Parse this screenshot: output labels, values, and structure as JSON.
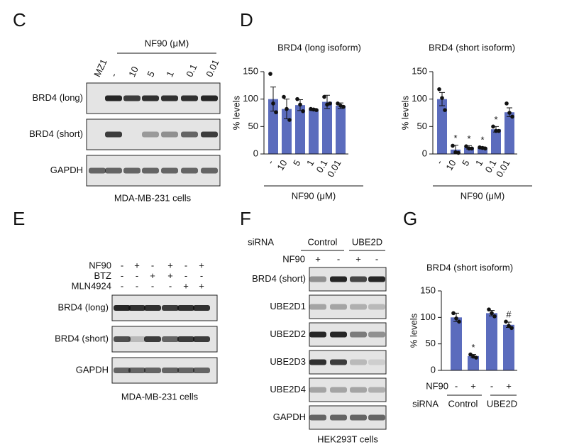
{
  "panels": {
    "C": {
      "label": "C",
      "header": "NF90 (μM)",
      "lanes": [
        "MZ1",
        "-",
        "10",
        "5",
        "1",
        "0.1",
        "0.01"
      ],
      "blots": [
        "BRD4 (long)",
        "BRD4 (short)",
        "GAPDH"
      ],
      "caption": "MDA-MB-231 cells"
    },
    "D": {
      "label": "D",
      "charts": [
        {
          "type": "bar",
          "title": "BRD4 (long isoform)",
          "ylabel": "% levels",
          "xlabel": "NF90 (μM)",
          "categories": [
            "-",
            "10",
            "5",
            "1",
            "0.1",
            "0.01"
          ],
          "values": [
            100,
            82,
            89,
            81,
            95,
            88
          ],
          "errors": [
            22,
            18,
            10,
            2,
            12,
            5
          ],
          "points": [
            [
              146,
              92,
              76
            ],
            [
              104,
              82,
              62
            ],
            [
              100,
              90,
              78
            ],
            [
              82,
              81,
              80
            ],
            [
              104,
              90,
              92
            ],
            [
              92,
              88,
              86
            ]
          ],
          "color": "#5b6cbd",
          "ylim": [
            0,
            150
          ],
          "yticks": [
            0,
            50,
            100,
            150
          ]
        },
        {
          "type": "bar",
          "title": "BRD4 (short isoform)",
          "ylabel": "% levels",
          "xlabel": "NF90 (μM)",
          "categories": [
            "-",
            "10",
            "5",
            "1",
            "0.1",
            "0.01"
          ],
          "values": [
            100,
            8,
            12,
            11,
            45,
            76
          ],
          "errors": [
            12,
            8,
            3,
            2,
            5,
            8
          ],
          "points": [
            [
              118,
              102,
              80
            ],
            [
              15,
              3,
              2
            ],
            [
              14,
              10,
              10
            ],
            [
              12,
              11,
              10
            ],
            [
              50,
              42,
              42
            ],
            [
              92,
              75,
              68
            ]
          ],
          "annotations": [
            {
              "index": 1,
              "text": "*"
            },
            {
              "index": 2,
              "text": "*"
            },
            {
              "index": 3,
              "text": "*"
            },
            {
              "index": 4,
              "text": "*"
            }
          ],
          "color": "#5b6cbd",
          "ylim": [
            0,
            150
          ],
          "yticks": [
            0,
            50,
            100,
            150
          ]
        }
      ]
    },
    "E": {
      "label": "E",
      "treatments": [
        {
          "name": "NF90",
          "signs": [
            "-",
            "+",
            "-",
            "+",
            "-",
            "+"
          ]
        },
        {
          "name": "BTZ",
          "signs": [
            "-",
            "-",
            "+",
            "+",
            "-",
            "-"
          ]
        },
        {
          "name": "MLN4924",
          "signs": [
            "-",
            "-",
            "-",
            "-",
            "+",
            "+"
          ]
        }
      ],
      "blots": [
        "BRD4 (long)",
        "BRD4 (short)",
        "GAPDH"
      ],
      "caption": "MDA-MB-231 cells"
    },
    "F": {
      "label": "F",
      "group_label": "siRNA",
      "groups": [
        "Control",
        "UBE2D"
      ],
      "row_label": "NF90",
      "signs": [
        "+",
        "-",
        "+",
        "-"
      ],
      "blots": [
        "BRD4 (short)",
        "UBE2D1",
        "UBE2D2",
        "UBE2D3",
        "UBE2D4",
        "GAPDH"
      ],
      "caption": "HEK293T cells"
    },
    "G": {
      "label": "G",
      "chart": {
        "type": "bar",
        "title": "BRD4 (short isoform)",
        "ylabel": "% levels",
        "row_label": "NF90",
        "categories": [
          "-",
          "+",
          "-",
          "+"
        ],
        "group_label": "siRNA",
        "groups": [
          "Control",
          "UBE2D"
        ],
        "values": [
          100,
          27,
          108,
          86
        ],
        "errors": [
          8,
          3,
          5,
          5
        ],
        "points": [
          [
            108,
            98,
            92
          ],
          [
            30,
            26,
            24
          ],
          [
            115,
            108,
            102
          ],
          [
            92,
            84,
            80
          ]
        ],
        "annotations": [
          {
            "index": 1,
            "text": "*"
          },
          {
            "index": 3,
            "text": "#"
          }
        ],
        "color": "#5b6cbd",
        "ylim": [
          0,
          150
        ],
        "yticks": [
          0,
          50,
          100,
          150
        ]
      }
    }
  }
}
